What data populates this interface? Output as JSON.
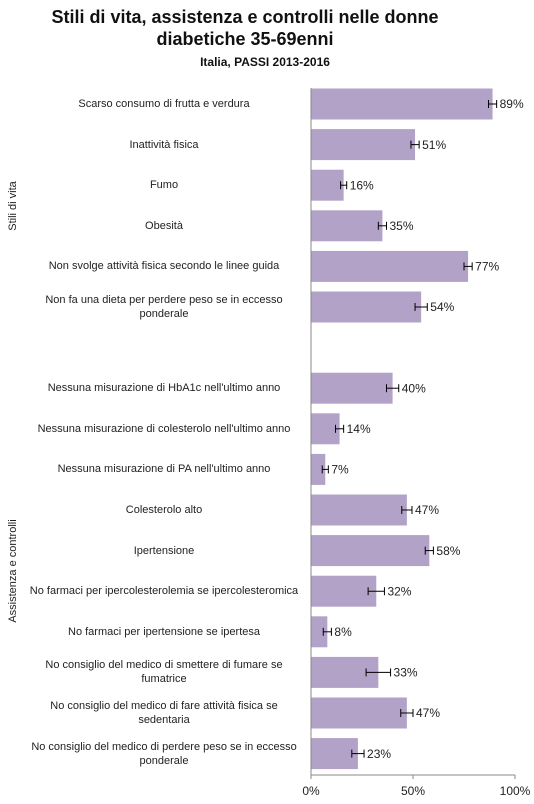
{
  "chart_data": {
    "type": "bar",
    "title": "Stili di vita, assistenza e controlli nelle donne diabetiche 35-69enni",
    "subtitle": "Italia, PASSI 2013-2016",
    "color": "#b3a2c7",
    "groups": [
      {
        "name": "Stili di vita",
        "categories": [
          "Scarso consumo di frutta e verdura",
          "Inattività fisica",
          "Fumo",
          "Obesità",
          "Non svolge attività fisica secondo le linee guida",
          "Non fa una dieta per perdere peso se in eccesso ponderale"
        ],
        "values": [
          89,
          51,
          16,
          35,
          77,
          54
        ],
        "errors": [
          2,
          2,
          1.5,
          2,
          2,
          3
        ],
        "value_labels": [
          "89%",
          "51%",
          "16%",
          "35%",
          "77%",
          "54%"
        ]
      },
      {
        "name": "Assistenza e controlli",
        "categories": [
          "Nessuna misurazione di HbA1c nell'ultimo anno",
          "Nessuna misurazione di colesterolo nell'ultimo anno",
          "Nessuna misurazione di PA nell'ultimo anno",
          "Colesterolo alto",
          "Ipertensione",
          "No farmaci per ipercolesterolemia se ipercolesteromica",
          "No farmaci per ipertensione se ipertesa",
          "No consiglio del medico di smettere di fumare se fumatrice",
          "No consiglio del medico di fare attività fisica se sedentaria",
          "No consiglio del medico di perdere peso se in eccesso ponderale"
        ],
        "values": [
          40,
          14,
          7,
          47,
          58,
          32,
          8,
          33,
          47,
          23
        ],
        "errors": [
          3,
          2,
          1.5,
          2.5,
          2,
          4,
          2,
          6,
          3,
          3
        ],
        "value_labels": [
          "40%",
          "14%",
          "7%",
          "47%",
          "58%",
          "32%",
          "8%",
          "33%",
          "47%",
          "23%"
        ]
      }
    ],
    "xlim": [
      0,
      100
    ],
    "xticks": [
      {
        "value": 0,
        "label": "0%"
      },
      {
        "value": 50,
        "label": "50%"
      },
      {
        "value": 100,
        "label": "100%"
      }
    ]
  }
}
